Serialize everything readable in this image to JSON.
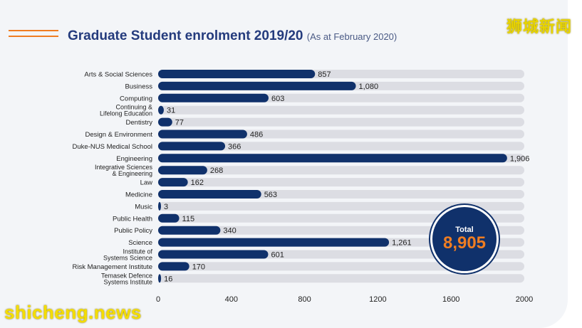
{
  "header": {
    "title": "Graduate Student enrolment 2019/20",
    "subtitle": "(As at February 2020)"
  },
  "watermarks": {
    "top_right": "狮城新闻",
    "bottom_left": "shicheng.news"
  },
  "total": {
    "label": "Total",
    "value": "8,905"
  },
  "colors": {
    "bar": "#10316b",
    "track": "#dcdde3",
    "accent": "#ef7d22",
    "title": "#243b7d"
  },
  "chart_data": {
    "type": "bar",
    "orientation": "horizontal",
    "categories": [
      [
        "Arts & Social Sciences"
      ],
      [
        "Business"
      ],
      [
        "Computing"
      ],
      [
        "Continuing &",
        "Lifelong Education"
      ],
      [
        "Dentistry"
      ],
      [
        "Design & Environment"
      ],
      [
        "Duke-NUS Medical School"
      ],
      [
        "Engineering"
      ],
      [
        "Integrative Sciences",
        "& Engineering"
      ],
      [
        "Law"
      ],
      [
        "Medicine"
      ],
      [
        "Music"
      ],
      [
        "Public Health"
      ],
      [
        "Public Policy"
      ],
      [
        "Science"
      ],
      [
        "Institute of",
        "Systems Science"
      ],
      [
        "Risk Management Institute"
      ],
      [
        "Temasek Defence",
        "Systems Institute"
      ]
    ],
    "values": [
      857,
      1080,
      603,
      31,
      77,
      486,
      366,
      1906,
      268,
      162,
      563,
      3,
      115,
      340,
      1261,
      601,
      170,
      16
    ],
    "value_labels": [
      "857",
      "1,080",
      "603",
      "31",
      "77",
      "486",
      "366",
      "1,906",
      "268",
      "162",
      "563",
      "3",
      "115",
      "340",
      "1,261",
      "601",
      "170",
      "16"
    ],
    "xlim": [
      0,
      2000
    ],
    "xticks": [
      "0",
      "400",
      "800",
      "1200",
      "1600",
      "2000"
    ],
    "tick_values": [
      0,
      400,
      800,
      1200,
      1600,
      2000
    ],
    "grid": false,
    "legend": "none"
  }
}
